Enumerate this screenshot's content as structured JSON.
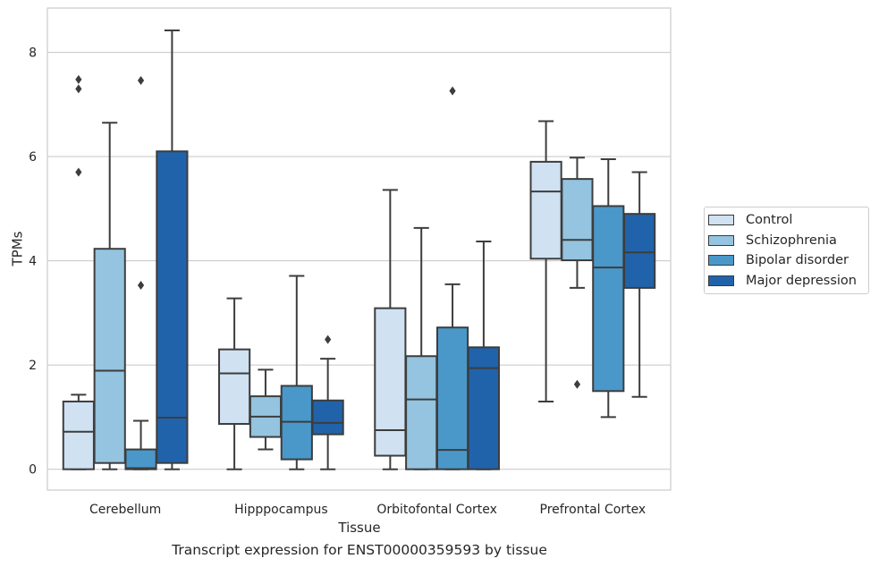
{
  "chart_data": {
    "type": "box",
    "xlabel": "Tissue",
    "ylabel": "TPMs",
    "caption": "Transcript expression for ENST00000359593 by tissue",
    "categories": [
      "Cerebellum",
      "Hipppocampus",
      "Orbitofontal Cortex",
      "Prefrontal Cortex"
    ],
    "ylim": [
      -0.4,
      8.85
    ],
    "yticks": [
      0,
      2,
      4,
      6,
      8
    ],
    "grid": "horizontal",
    "legend_position": "right",
    "series": [
      {
        "name": "Control",
        "color": "#d0e1f2",
        "boxes": [
          {
            "whislo": 0,
            "q1": 0,
            "med": 0.72,
            "q3": 1.3,
            "whishi": 1.43,
            "fliers": [
              5.7,
              7.3,
              7.48
            ]
          },
          {
            "whislo": 0,
            "q1": 0.87,
            "med": 1.84,
            "q3": 2.3,
            "whishi": 3.28,
            "fliers": []
          },
          {
            "whislo": 0,
            "q1": 0.26,
            "med": 0.75,
            "q3": 3.09,
            "whishi": 5.36,
            "fliers": []
          },
          {
            "whislo": 1.3,
            "q1": 4.04,
            "med": 5.33,
            "q3": 5.9,
            "whishi": 6.68,
            "fliers": []
          }
        ]
      },
      {
        "name": "Schizophrenia",
        "color": "#94c4df",
        "boxes": [
          {
            "whislo": 0,
            "q1": 0.12,
            "med": 1.89,
            "q3": 4.23,
            "whishi": 6.65,
            "fliers": []
          },
          {
            "whislo": 0.38,
            "q1": 0.62,
            "med": 1.01,
            "q3": 1.4,
            "whishi": 1.91,
            "fliers": []
          },
          {
            "whislo": 0,
            "q1": 0,
            "med": 1.34,
            "q3": 2.17,
            "whishi": 4.63,
            "fliers": []
          },
          {
            "whislo": 3.48,
            "q1": 4.01,
            "med": 4.4,
            "q3": 5.57,
            "whishi": 5.98,
            "fliers": [
              1.63
            ]
          }
        ]
      },
      {
        "name": "Bipolar disorder",
        "color": "#4a98c9",
        "boxes": [
          {
            "whislo": 0,
            "q1": 0,
            "med": 0.02,
            "q3": 0.38,
            "whishi": 0.93,
            "fliers": [
              3.53,
              7.46
            ]
          },
          {
            "whislo": 0,
            "q1": 0.19,
            "med": 0.91,
            "q3": 1.6,
            "whishi": 3.71,
            "fliers": []
          },
          {
            "whislo": 0,
            "q1": 0,
            "med": 0.37,
            "q3": 2.72,
            "whishi": 3.55,
            "fliers": [
              7.26
            ]
          },
          {
            "whislo": 1.0,
            "q1": 1.5,
            "med": 3.87,
            "q3": 5.05,
            "whishi": 5.95,
            "fliers": []
          }
        ]
      },
      {
        "name": "Major depression",
        "color": "#2163aa",
        "boxes": [
          {
            "whislo": 0,
            "q1": 0.12,
            "med": 0.99,
            "q3": 6.1,
            "whishi": 8.42,
            "fliers": []
          },
          {
            "whislo": 0,
            "q1": 0.67,
            "med": 0.89,
            "q3": 1.32,
            "whishi": 2.12,
            "fliers": [
              2.49
            ]
          },
          {
            "whislo": 0,
            "q1": 0,
            "med": 1.94,
            "q3": 2.34,
            "whishi": 4.37,
            "fliers": []
          },
          {
            "whislo": 1.39,
            "q1": 3.48,
            "med": 4.16,
            "q3": 4.9,
            "whishi": 5.7,
            "fliers": []
          }
        ]
      }
    ]
  }
}
